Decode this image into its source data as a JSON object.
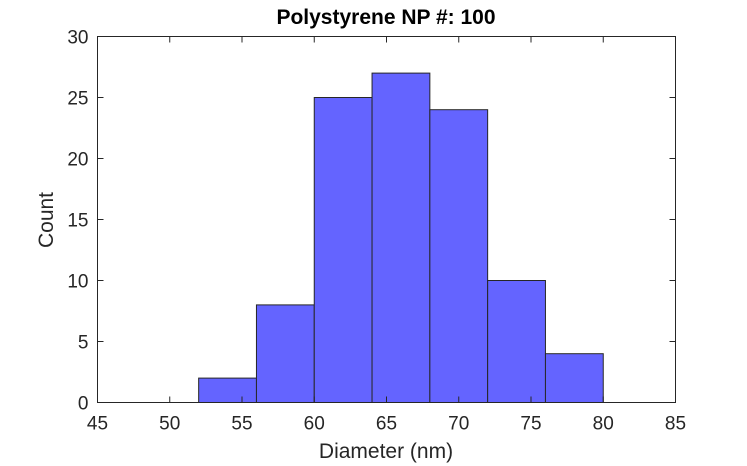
{
  "chart_data": {
    "type": "bar",
    "title": "Polystyrene NP #: 100",
    "xlabel": "Diameter (nm)",
    "ylabel": "Count",
    "xlim": [
      45,
      85
    ],
    "ylim": [
      0,
      30
    ],
    "xticks": [
      45,
      50,
      55,
      60,
      65,
      70,
      75,
      80,
      85
    ],
    "yticks": [
      0,
      5,
      10,
      15,
      20,
      25,
      30
    ],
    "bin_edges": [
      52,
      56,
      60,
      64,
      68,
      72,
      76,
      80
    ],
    "values": [
      2,
      8,
      25,
      27,
      24,
      10,
      4
    ],
    "bar_color": "#6464ff",
    "edge_color": "#262626",
    "grid": false,
    "legend": "none"
  }
}
